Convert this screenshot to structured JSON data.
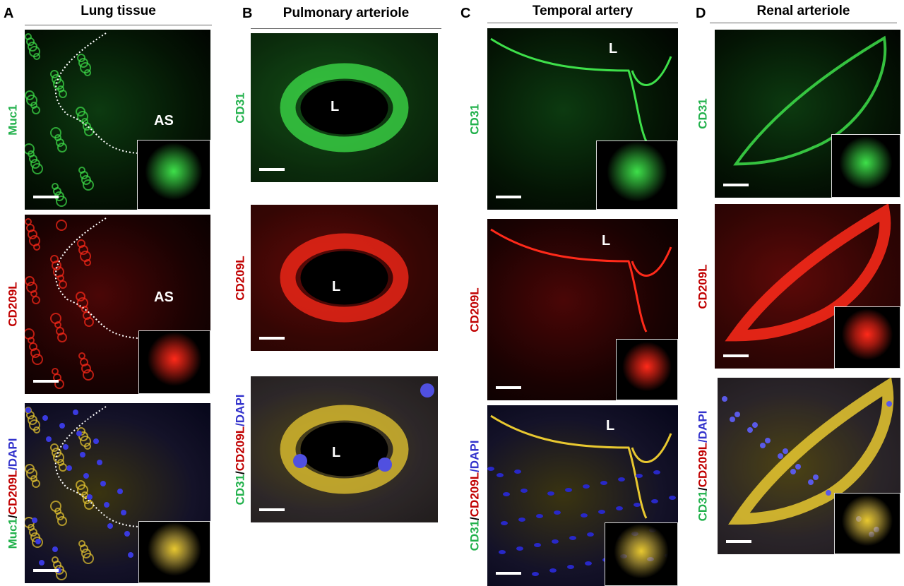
{
  "colors": {
    "green": "#22b14c",
    "red": "#c00000",
    "blue": "#3333cc",
    "black": "#000000"
  },
  "columns": [
    {
      "letter": "A",
      "title": "Lung tissue",
      "rows": [
        {
          "channel": "green",
          "lumen": "AS",
          "label": [
            {
              "t": "Muc1",
              "c": "green"
            }
          ]
        },
        {
          "channel": "red",
          "lumen": "AS",
          "label": [
            {
              "t": "CD209L",
              "c": "red"
            }
          ]
        },
        {
          "channel": "merge",
          "lumen": "",
          "label": [
            {
              "t": "Muc1",
              "c": "green"
            },
            {
              "t": "/",
              "c": "black"
            },
            {
              "t": "CD209L",
              "c": "red"
            },
            {
              "t": "/DAPI",
              "c": "blue"
            }
          ]
        }
      ]
    },
    {
      "letter": "B",
      "title": "Pulmonary arteriole",
      "rows": [
        {
          "channel": "green",
          "lumen": "L",
          "label": [
            {
              "t": "CD31",
              "c": "green"
            }
          ]
        },
        {
          "channel": "red",
          "lumen": "L",
          "label": [
            {
              "t": "CD209L",
              "c": "red"
            }
          ]
        },
        {
          "channel": "merge",
          "lumen": "L",
          "label": [
            {
              "t": "CD31",
              "c": "green"
            },
            {
              "t": "/",
              "c": "black"
            },
            {
              "t": "CD209L",
              "c": "red"
            },
            {
              "t": "/DAPI",
              "c": "blue"
            }
          ]
        }
      ]
    },
    {
      "letter": "C",
      "title": "Temporal artery",
      "rows": [
        {
          "channel": "green",
          "lumen": "L",
          "label": [
            {
              "t": "CD31",
              "c": "green"
            }
          ]
        },
        {
          "channel": "red",
          "lumen": "L",
          "label": [
            {
              "t": "CD209L",
              "c": "red"
            }
          ]
        },
        {
          "channel": "merge",
          "lumen": "L",
          "label": [
            {
              "t": "CD31",
              "c": "green"
            },
            {
              "t": "/",
              "c": "black"
            },
            {
              "t": "CD209L",
              "c": "red"
            },
            {
              "t": "/DAPI",
              "c": "blue"
            }
          ]
        }
      ]
    },
    {
      "letter": "D",
      "title": "Renal arteriole",
      "rows": [
        {
          "channel": "green",
          "lumen": "",
          "label": [
            {
              "t": "CD31",
              "c": "green"
            }
          ]
        },
        {
          "channel": "red",
          "lumen": "",
          "label": [
            {
              "t": "CD209L",
              "c": "red"
            }
          ]
        },
        {
          "channel": "merge",
          "lumen": "",
          "label": [
            {
              "t": "CD31",
              "c": "green"
            },
            {
              "t": "/",
              "c": "black"
            },
            {
              "t": "CD209L",
              "c": "red"
            },
            {
              "t": "/DAPI",
              "c": "blue"
            }
          ]
        }
      ]
    }
  ]
}
